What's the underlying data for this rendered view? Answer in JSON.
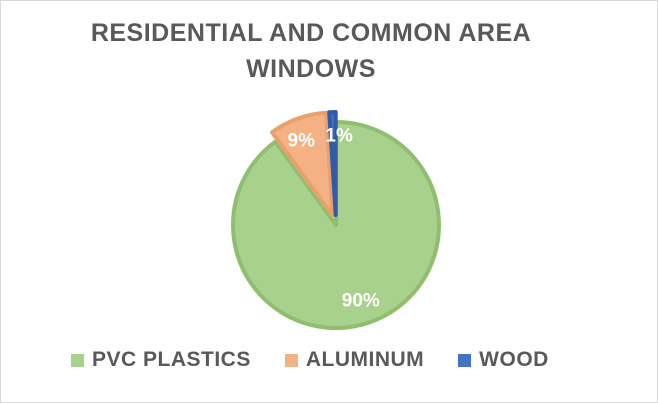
{
  "chart_data": {
    "type": "pie",
    "title": "RESIDENTIAL AND COMMON AREA WINDOWS",
    "title_lines": [
      "RESIDENTIAL AND COMMON AREA",
      "WINDOWS"
    ],
    "categories": [
      "PVC PLASTICS",
      "ALUMINUM",
      "WOOD"
    ],
    "values": [
      90,
      9,
      1
    ],
    "data_labels": [
      "90%",
      "9%",
      "1%"
    ],
    "colors": [
      "#a9d18e",
      "#f4b183",
      "#4472c4"
    ],
    "border_colors": [
      "#8fbf6e",
      "#e9a06c",
      "#2f5ba8"
    ],
    "legend_position": "bottom"
  }
}
